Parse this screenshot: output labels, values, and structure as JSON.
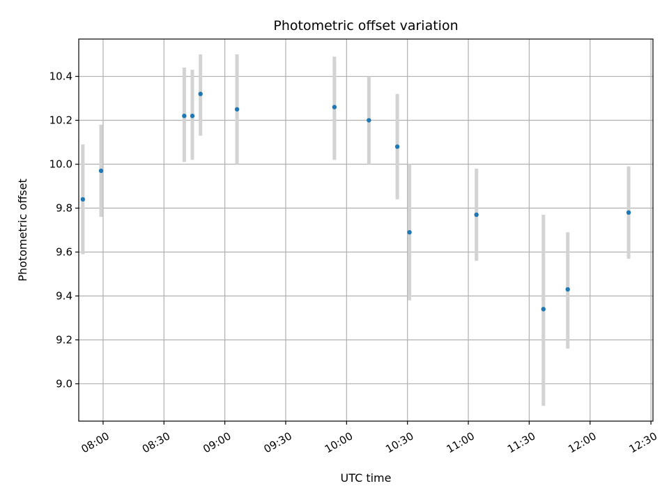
{
  "chart_data": {
    "type": "scatter",
    "title": "Photometric offset variation",
    "xlabel": "UTC time",
    "ylabel": "Photometric offset",
    "x_ticks": [
      "08:00",
      "08:30",
      "09:00",
      "09:30",
      "10:00",
      "10:30",
      "11:00",
      "11:30",
      "12:00",
      "12:30"
    ],
    "y_ticks": [
      "9.0",
      "9.2",
      "9.4",
      "9.6",
      "9.8",
      "10.0",
      "10.2",
      "10.4"
    ],
    "xlim": [
      "07:48",
      "12:31"
    ],
    "ylim": [
      8.83,
      10.57
    ],
    "grid": true,
    "marker_color": "#1f77b4",
    "errorbar_color": "#d3d3d3",
    "points": [
      {
        "x": "07:50",
        "y": 9.84,
        "err_low": 9.59,
        "err_high": 10.09
      },
      {
        "x": "07:59",
        "y": 9.97,
        "err_low": 9.76,
        "err_high": 10.18
      },
      {
        "x": "08:40",
        "y": 10.22,
        "err_low": 10.01,
        "err_high": 10.44
      },
      {
        "x": "08:44",
        "y": 10.22,
        "err_low": 10.02,
        "err_high": 10.43
      },
      {
        "x": "08:48",
        "y": 10.32,
        "err_low": 10.13,
        "err_high": 10.5
      },
      {
        "x": "09:06",
        "y": 10.25,
        "err_low": 10.0,
        "err_high": 10.5
      },
      {
        "x": "09:54",
        "y": 10.26,
        "err_low": 10.02,
        "err_high": 10.49
      },
      {
        "x": "10:11",
        "y": 10.2,
        "err_low": 10.0,
        "err_high": 10.4
      },
      {
        "x": "10:25",
        "y": 10.08,
        "err_low": 9.84,
        "err_high": 10.32
      },
      {
        "x": "10:31",
        "y": 9.69,
        "err_low": 9.38,
        "err_high": 10.0
      },
      {
        "x": "11:04",
        "y": 9.77,
        "err_low": 9.56,
        "err_high": 9.98
      },
      {
        "x": "11:37",
        "y": 9.34,
        "err_low": 8.9,
        "err_high": 9.77
      },
      {
        "x": "11:49",
        "y": 9.43,
        "err_low": 9.16,
        "err_high": 9.69
      },
      {
        "x": "12:19",
        "y": 9.78,
        "err_low": 9.57,
        "err_high": 9.99
      }
    ]
  }
}
